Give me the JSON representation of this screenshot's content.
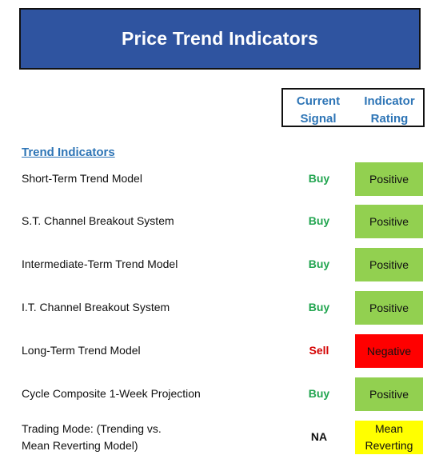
{
  "title": "Price Trend Indicators",
  "headers": {
    "current_signal": [
      "Current",
      "Signal"
    ],
    "indicator_rating": [
      "Indicator",
      "Rating"
    ]
  },
  "section_title": "Trend Indicators",
  "colors": {
    "banner": "#2f54a0",
    "header_text": "#2e75b6",
    "buy": "#22a550",
    "sell": "#d40000",
    "na": "#111111",
    "positive": "#92d050",
    "negative": "#ff0000",
    "mean_reverting": "#ffff00"
  },
  "rows": [
    {
      "label": [
        "Short-Term Trend Model"
      ],
      "signal": "Buy",
      "rating": [
        "Positive"
      ]
    },
    {
      "label": [
        "S.T. Channel Breakout System"
      ],
      "signal": "Buy",
      "rating": [
        "Positive"
      ]
    },
    {
      "label": [
        "Intermediate-Term Trend Model"
      ],
      "signal": "Buy",
      "rating": [
        "Positive"
      ]
    },
    {
      "label": [
        "I.T. Channel Breakout System"
      ],
      "signal": "Buy",
      "rating": [
        "Positive"
      ]
    },
    {
      "label": [
        "Long-Term Trend Model"
      ],
      "signal": "Sell",
      "rating": [
        "Negative"
      ]
    },
    {
      "label": [
        "Cycle Composite 1-Week Projection"
      ],
      "signal": "Buy",
      "rating": [
        "Positive"
      ]
    },
    {
      "label": [
        "Trading Mode: (Trending vs.",
        "Mean Reverting Model)"
      ],
      "signal": "NA",
      "rating": [
        "Mean",
        "Reverting"
      ]
    }
  ]
}
